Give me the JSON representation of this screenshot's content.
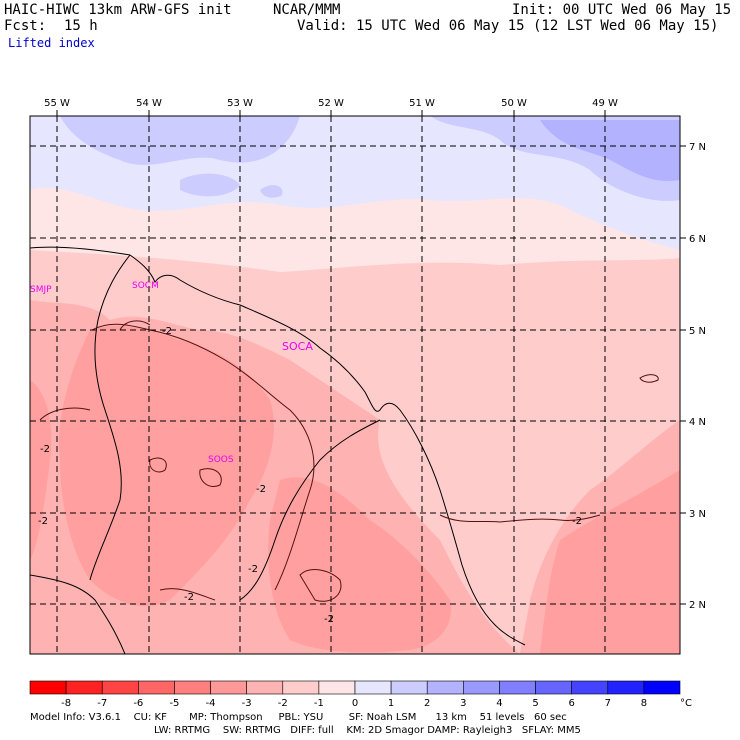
{
  "header": {
    "model_title": "HAIC-HIWC 13km ARW-GFS init",
    "center": "NCAR/MMM",
    "forecast_label": "Fcst:",
    "forecast_hours": "15 h",
    "init_text": "Init: 00 UTC Wed 06 May 15",
    "valid_text": "Valid: 15 UTC Wed 06 May 15 (12 LST Wed 06 May 15)",
    "field_name": "Lifted index"
  },
  "map": {
    "longitude_labels": [
      "55 W",
      "54 W",
      "53 W",
      "52 W",
      "51 W",
      "50 W",
      "49 W"
    ],
    "latitude_labels": [
      "7 N",
      "6 N",
      "5 N",
      "4 N",
      "3 N",
      "2 N"
    ],
    "station_labels": [
      "SMJP",
      "SOCM",
      "SOCA",
      "SOOS"
    ],
    "contour_labels": [
      "-2",
      "-2",
      "-2",
      "-2",
      "-2",
      "-2",
      "-2",
      "-2"
    ]
  },
  "colorbar": {
    "ticks": [
      "-8",
      "-7",
      "-6",
      "-5",
      "-4",
      "-3",
      "-2",
      "-1",
      "0",
      "1",
      "2",
      "3",
      "4",
      "5",
      "6",
      "7",
      "8"
    ],
    "unit": "°C",
    "colors": [
      "#ff0000",
      "#ff2222",
      "#ff4444",
      "#ff6666",
      "#ff7f7f",
      "#ff9999",
      "#ffb2b2",
      "#ffcccc",
      "#ffe6e6",
      "#e6e6ff",
      "#ccccff",
      "#b2b2ff",
      "#9999ff",
      "#7f7fff",
      "#6666ff",
      "#4444ff",
      "#2222ff",
      "#0000ff"
    ]
  },
  "footer": {
    "line1": "Model Info: V3.6.1    CU: KF       MP: Thompson     PBL: YSU        SF: Noah LSM      13 km    51 levels   60 sec",
    "line2": "LW: RRTMG    SW: RRTMG   DIFF: full    KM: 2D Smagor DAMP: Rayleigh3   SFLAY: MM5"
  }
}
